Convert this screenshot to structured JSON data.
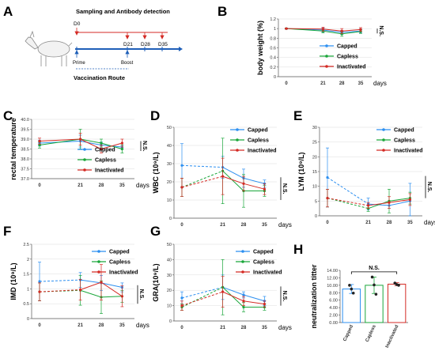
{
  "colors": {
    "Capped": "#2c8ff0",
    "Capless": "#1aa63a",
    "Inactivated": "#d42a24",
    "axis": "#555555",
    "grid": "#dddddd"
  },
  "timeline": {
    "letter": "A",
    "title": "Sampling and Antibody detection",
    "days": [
      "D0",
      "D21",
      "D28",
      "D35"
    ],
    "prime": "Prime",
    "boost": "Boost",
    "route": "Vaccination Route",
    "icon": "goat-icon"
  },
  "days_label": "days",
  "ns_label": "N.S.",
  "chart_data": [
    {
      "id": "B",
      "type": "line",
      "ylabel": "body weight (%)",
      "x": [
        0,
        21,
        28,
        35
      ],
      "ylim": [
        0,
        1.2
      ],
      "yticks": [
        "0",
        "0.2",
        "0.4",
        "0.6",
        "0.8",
        "1",
        "1.2"
      ],
      "dashed_first": false,
      "series": [
        {
          "name": "Capped",
          "values": [
            1.0,
            0.97,
            0.92,
            0.95
          ],
          "err": [
            0.01,
            0.04,
            0.04,
            0.04
          ]
        },
        {
          "name": "Capless",
          "values": [
            1.0,
            0.95,
            0.89,
            0.94
          ],
          "err": [
            0.01,
            0.04,
            0.05,
            0.04
          ]
        },
        {
          "name": "Inactivated",
          "values": [
            1.0,
            0.99,
            0.95,
            0.98
          ],
          "err": [
            0.01,
            0.04,
            0.05,
            0.04
          ]
        }
      ]
    },
    {
      "id": "C",
      "type": "line",
      "ylabel": "rectal temperature",
      "x": [
        0,
        21,
        28,
        35
      ],
      "ylim": [
        37,
        40
      ],
      "yticks": [
        "37.0",
        "37.5",
        "38.0",
        "38.5",
        "39.0",
        "39.5",
        "40.0"
      ],
      "dashed_first": false,
      "series": [
        {
          "name": "Capped",
          "values": [
            38.8,
            38.9,
            38.7,
            38.6
          ],
          "err": [
            0.15,
            0.3,
            0.15,
            0.1
          ]
        },
        {
          "name": "Capless",
          "values": [
            38.7,
            39.0,
            38.8,
            38.5
          ],
          "err": [
            0.15,
            0.5,
            0.2,
            0.2
          ]
        },
        {
          "name": "Inactivated",
          "values": [
            38.9,
            39.0,
            38.5,
            38.8
          ],
          "err": [
            0.15,
            0.3,
            0.2,
            0.2
          ]
        }
      ]
    },
    {
      "id": "D",
      "type": "line",
      "ylabel": "WBC (10⁹/L)",
      "x": [
        0,
        21,
        28,
        35
      ],
      "ylim": [
        0,
        50
      ],
      "yticks": [
        "0",
        "10",
        "20",
        "30",
        "40",
        "50"
      ],
      "dashed_first": true,
      "series": [
        {
          "name": "Capped",
          "values": [
            29,
            28,
            22,
            19
          ],
          "err": [
            12,
            6,
            5,
            2
          ]
        },
        {
          "name": "Capless",
          "values": [
            17,
            26,
            15,
            15
          ],
          "err": [
            5,
            18,
            9,
            3
          ]
        },
        {
          "name": "Inactivated",
          "values": [
            17,
            23,
            19,
            16
          ],
          "err": [
            5,
            10,
            4,
            3
          ]
        }
      ]
    },
    {
      "id": "E",
      "type": "line",
      "ylabel": "LYM (10⁹/L)",
      "x": [
        0,
        21,
        28,
        35
      ],
      "ylim": [
        0,
        30
      ],
      "yticks": [
        "0",
        "5",
        "10",
        "15",
        "20",
        "25",
        "30"
      ],
      "dashed_first": true,
      "series": [
        {
          "name": "Capped",
          "values": [
            13,
            4,
            3.5,
            5
          ],
          "err": [
            10,
            2,
            1,
            6
          ]
        },
        {
          "name": "Capless",
          "values": [
            6,
            2.5,
            5,
            6
          ],
          "err": [
            3,
            1,
            4,
            2
          ]
        },
        {
          "name": "Inactivated",
          "values": [
            6,
            3.5,
            4.5,
            5.5
          ],
          "err": [
            3,
            1,
            2,
            2
          ]
        }
      ]
    },
    {
      "id": "F",
      "type": "line",
      "ylabel": "IMD (10⁹/L)",
      "x": [
        0,
        21,
        28,
        35
      ],
      "ylim": [
        0,
        2.5
      ],
      "yticks": [
        "0",
        "0.5",
        "1",
        "1.5",
        "2",
        "2.5"
      ],
      "dashed_first": true,
      "series": [
        {
          "name": "Capped",
          "values": [
            1.25,
            1.3,
            1.2,
            1.05
          ],
          "err": [
            0.65,
            0.25,
            0.25,
            0.15
          ]
        },
        {
          "name": "Capless",
          "values": [
            0.9,
            0.95,
            0.72,
            0.75
          ],
          "err": [
            0.3,
            0.5,
            0.55,
            0.2
          ]
        },
        {
          "name": "Inactivated",
          "values": [
            0.9,
            0.97,
            1.22,
            0.75
          ],
          "err": [
            0.3,
            0.35,
            0.6,
            0.35
          ]
        }
      ]
    },
    {
      "id": "G",
      "type": "line",
      "ylabel": "GRA(10⁹/L)",
      "x": [
        0,
        21,
        28,
        35
      ],
      "ylim": [
        0,
        50
      ],
      "yticks": [
        "0",
        "10",
        "20",
        "30",
        "40",
        "50"
      ],
      "dashed_first": true,
      "series": [
        {
          "name": "Capped",
          "values": [
            15,
            22,
            17,
            13
          ],
          "err": [
            4,
            8,
            2,
            3
          ]
        },
        {
          "name": "Capless",
          "values": [
            9,
            22,
            9,
            9
          ],
          "err": [
            2,
            18,
            3,
            2
          ]
        },
        {
          "name": "Inactivated",
          "values": [
            10,
            19,
            13,
            11
          ],
          "err": [
            3,
            10,
            3,
            2
          ]
        }
      ]
    },
    {
      "id": "H",
      "type": "bar",
      "ylabel": "neutralization titter",
      "categories": [
        "Capped",
        "Capless",
        "Inactivated"
      ],
      "values": [
        9.0,
        10.0,
        10.3
      ],
      "err": [
        1.2,
        2.2,
        0.4
      ],
      "points": [
        [
          10.0,
          9.0,
          7.9
        ],
        [
          12.2,
          10.1,
          7.6
        ],
        [
          10.6,
          10.2,
          10.0
        ]
      ],
      "ylim": [
        0,
        14
      ],
      "yticks": [
        "0.00",
        "2.00",
        "4.00",
        "6.00",
        "8.00",
        "10.00",
        "12.00",
        "14.00"
      ]
    }
  ]
}
